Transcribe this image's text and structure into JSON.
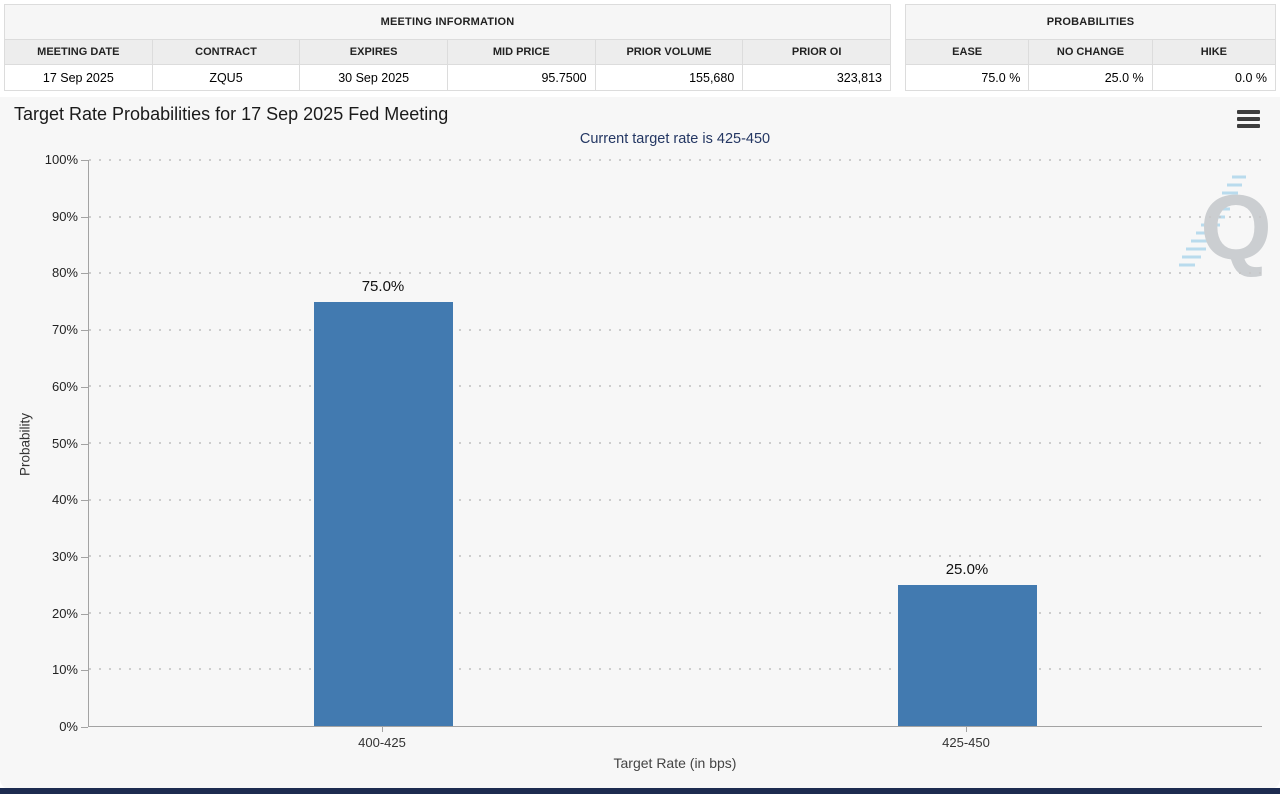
{
  "meeting_table": {
    "title": "MEETING INFORMATION",
    "columns": [
      "MEETING DATE",
      "CONTRACT",
      "EXPIRES",
      "MID PRICE",
      "PRIOR VOLUME",
      "PRIOR OI"
    ],
    "row": [
      "17 Sep 2025",
      "ZQU5",
      "30 Sep 2025",
      "95.7500",
      "155,680",
      "323,813"
    ]
  },
  "probabilities_table": {
    "title": "PROBABILITIES",
    "columns": [
      "EASE",
      "NO CHANGE",
      "HIKE"
    ],
    "row": [
      "75.0 %",
      "25.0 %",
      "0.0 %"
    ]
  },
  "chart_header": {
    "title": "Target Rate Probabilities for 17 Sep 2025 Fed Meeting",
    "menu_icon": "hamburger-icon",
    "watermark_letter": "Q"
  },
  "chart_data": {
    "type": "bar",
    "title": "Target Rate Probabilities for 17 Sep 2025 Fed Meeting",
    "subtitle": "Current target rate is 425-450",
    "categories": [
      "400-425",
      "425-450"
    ],
    "values": [
      75.0,
      25.0
    ],
    "bar_labels": [
      "75.0%",
      "25.0%"
    ],
    "xlabel": "Target Rate (in bps)",
    "ylabel": "Probability",
    "ylim": [
      0,
      100
    ],
    "ytick_step": 10,
    "ytick_labels": [
      "0%",
      "10%",
      "20%",
      "30%",
      "40%",
      "50%",
      "60%",
      "70%",
      "80%",
      "90%",
      "100%"
    ],
    "grid": "dotted horizontal gridlines on",
    "legend": "none",
    "bar_color": "#427ab0"
  },
  "colors": {
    "panel_background": "#f7f7f7",
    "bar": "#427ab0",
    "subtitle_text": "#243763",
    "bottom_bar": "#1d2b50",
    "table_header_bg": "#ededed",
    "watermark_gray": "#c7cacd",
    "watermark_blue": "#b3d8ec"
  }
}
